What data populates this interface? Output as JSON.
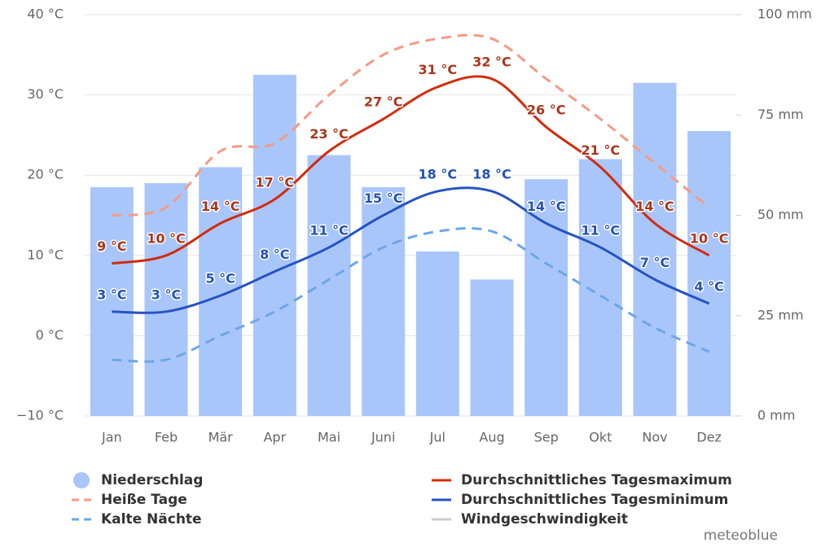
{
  "chart_data": {
    "type": "combo",
    "categories": [
      "Jan",
      "Feb",
      "Mär",
      "Apr",
      "Mai",
      "Juni",
      "Jul",
      "Aug",
      "Sep",
      "Okt",
      "Nov",
      "Dez"
    ],
    "ylim": [
      -10,
      40
    ],
    "yticks": [
      {
        "value": -10,
        "label": "−10 °C"
      },
      {
        "value": 0,
        "label": "0 °C"
      },
      {
        "value": 10,
        "label": "10 °C"
      },
      {
        "value": 20,
        "label": "20 °C"
      },
      {
        "value": 30,
        "label": "30 °C"
      },
      {
        "value": 40,
        "label": "40 °C"
      }
    ],
    "y2lim": [
      0,
      100
    ],
    "y2ticks": [
      {
        "value": 0,
        "label": "0 mm"
      },
      {
        "value": 25,
        "label": "25 mm"
      },
      {
        "value": 50,
        "label": "50 mm"
      },
      {
        "value": 75,
        "label": "75 mm"
      },
      {
        "value": 100,
        "label": "100 mm"
      }
    ],
    "grid": true,
    "series": [
      {
        "name": "Niederschlag",
        "type": "bar",
        "axis": "y2",
        "color": "#a9c6fb",
        "values": [
          57,
          58,
          62,
          85,
          65,
          57,
          41,
          34,
          59,
          64,
          83,
          71
        ]
      },
      {
        "name": "Heiße Tage",
        "type": "dashed",
        "color": "#f59a85",
        "values": [
          15,
          16,
          23,
          24,
          30,
          35,
          37,
          37,
          32,
          27,
          21.5,
          16
        ]
      },
      {
        "name": "Kalte Nächte",
        "type": "dashed",
        "color": "#6ea6e6",
        "values": [
          -3,
          -3,
          0,
          3,
          7,
          11,
          13,
          13,
          9,
          5,
          1,
          -2
        ]
      },
      {
        "name": "Durchschnittliches Tagesmaximum",
        "type": "line",
        "color": "#d12c0d",
        "label_color": "#a8361c",
        "values": [
          9,
          10,
          14,
          17,
          23,
          27,
          31,
          32,
          26,
          21,
          14,
          10
        ],
        "value_labels": [
          "9 °C",
          "10 °C",
          "14 °C",
          "17 °C",
          "23 °C",
          "27 °C",
          "31 °C",
          "32 °C",
          "26 °C",
          "21 °C",
          "14 °C",
          "10 °C"
        ]
      },
      {
        "name": "Durchschnittliches Tagesminimum",
        "type": "line",
        "color": "#2553c4",
        "label_color": "#2451b8",
        "values": [
          3,
          3,
          5,
          8,
          11,
          15,
          18,
          18,
          14,
          11,
          7,
          4
        ],
        "value_labels": [
          "3 °C",
          "3 °C",
          "5 °C",
          "8 °C",
          "11 °C",
          "15 °C",
          "18 °C",
          "18 °C",
          "14 °C",
          "11 °C",
          "7 °C",
          "4 °C"
        ]
      },
      {
        "name": "Windgeschwindigkeit",
        "type": "line",
        "color": "#cccccc",
        "visible": false
      }
    ],
    "credit": "meteoblue"
  }
}
